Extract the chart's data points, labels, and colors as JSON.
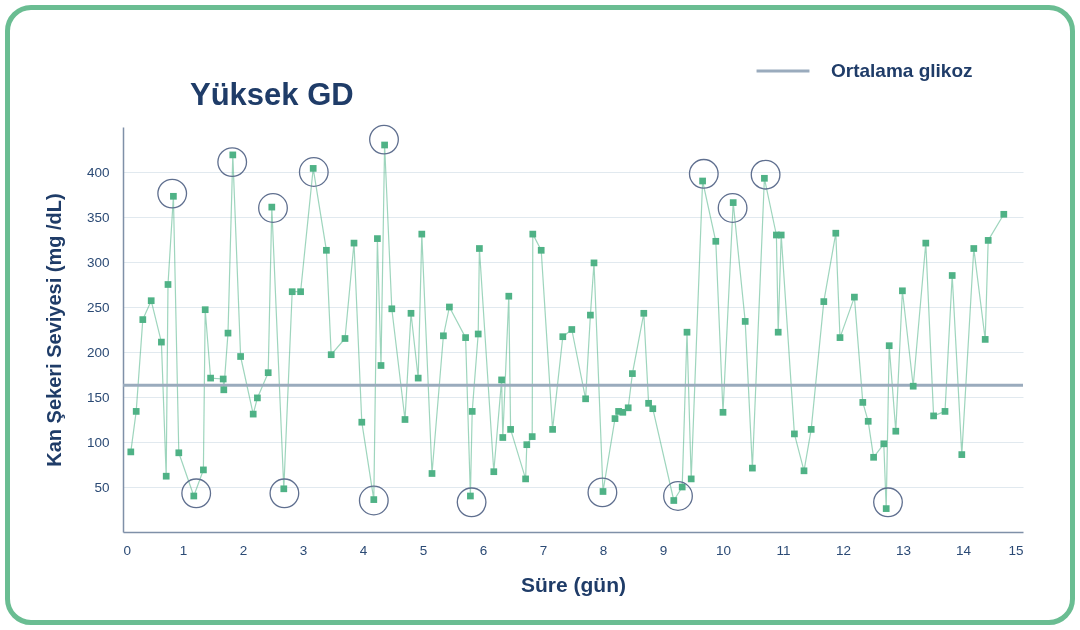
{
  "chart_data": {
    "type": "line",
    "title": "Yüksek GD",
    "xlabel": "Süre (gün)",
    "ylabel": "Kan Şekeri Seviyesi (mg /dL)",
    "xlim": [
      0,
      15
    ],
    "xticks": [
      0,
      1,
      2,
      3,
      4,
      5,
      6,
      7,
      8,
      9,
      10,
      11,
      12,
      13,
      14,
      15
    ],
    "ylim": [
      0,
      450
    ],
    "yticks": [
      50,
      100,
      150,
      200,
      250,
      300,
      350,
      400
    ],
    "grid": "y",
    "legend": "top right",
    "marker": "square",
    "ref_lines": [
      {
        "axis": "y",
        "value": 163,
        "label": "Ortalama glikoz",
        "color": "#9aabbd"
      }
    ],
    "series": [
      {
        "color": "#4fb286",
        "x": [
          0.13,
          0.22,
          0.33,
          0.47,
          0.64,
          0.72,
          0.75,
          0.84,
          0.93,
          1.18,
          1.34,
          1.37,
          1.46,
          1.67,
          1.68,
          1.75,
          1.83,
          1.96,
          2.17,
          2.24,
          2.42,
          2.48,
          2.68,
          2.82,
          2.96,
          3.17,
          3.39,
          3.47,
          3.7,
          3.85,
          3.98,
          4.18,
          4.24,
          4.3,
          4.36,
          4.48,
          4.7,
          4.8,
          4.92,
          4.98,
          5.15,
          5.34,
          5.44,
          5.71,
          5.79,
          5.82,
          5.92,
          5.94,
          6.18,
          6.31,
          6.33,
          6.43,
          6.46,
          6.71,
          6.73,
          6.82,
          6.83,
          6.97,
          7.16,
          7.33,
          7.48,
          7.71,
          7.79,
          7.85,
          8.0,
          8.2,
          8.26,
          8.33,
          8.42,
          8.49,
          8.68,
          8.76,
          8.83,
          9.18,
          9.32,
          9.4,
          9.47,
          9.66,
          9.88,
          10.0,
          10.17,
          10.37,
          10.49,
          10.69,
          10.89,
          10.92,
          10.97,
          11.19,
          11.35,
          11.47,
          11.68,
          11.88,
          11.95,
          12.19,
          12.33,
          12.42,
          12.51,
          12.68,
          12.72,
          12.77,
          12.88,
          12.99,
          13.17,
          13.38,
          13.51,
          13.7,
          13.82,
          13.98,
          14.18,
          14.37,
          14.42,
          14.68
        ],
        "values": [
          89,
          134,
          236,
          257,
          211,
          62,
          275,
          373,
          88,
          40,
          69,
          247,
          171,
          170,
          158,
          221,
          419,
          195,
          131,
          149,
          177,
          361,
          48,
          267,
          267,
          404,
          313,
          197,
          215,
          321,
          122,
          36,
          326,
          185,
          430,
          248,
          125,
          243,
          171,
          331,
          65,
          218,
          250,
          216,
          40,
          134,
          220,
          315,
          67,
          169,
          105,
          262,
          114,
          59,
          97,
          106,
          331,
          313,
          114,
          217,
          225,
          148,
          241,
          299,
          45,
          126,
          134,
          133,
          138,
          176,
          243,
          143,
          137,
          35,
          50,
          222,
          59,
          390,
          323,
          133,
          366,
          234,
          71,
          393,
          330,
          222,
          330,
          109,
          68,
          114,
          256,
          332,
          216,
          261,
          144,
          123,
          83,
          98,
          26,
          207,
          112,
          268,
          162,
          321,
          129,
          134,
          285,
          86,
          315,
          214,
          324,
          353
        ]
      },
      {
        "type": "scatter",
        "marker": "circle",
        "color": "#5f6f8f",
        "x": [
          0.82,
          1.22,
          1.82,
          2.5,
          2.69,
          3.18,
          4.18,
          4.35,
          5.81,
          7.99,
          9.25,
          9.68,
          10.16,
          10.71,
          12.75
        ],
        "values": [
          376,
          43,
          411,
          360,
          43,
          400,
          35,
          436,
          33,
          44,
          40,
          398,
          360,
          397,
          33
        ]
      }
    ]
  }
}
